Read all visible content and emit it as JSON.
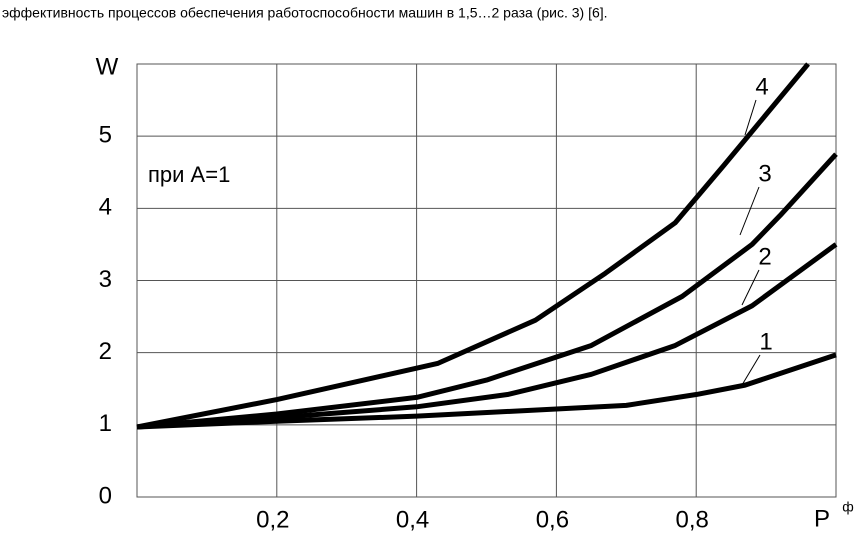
{
  "chart_data": {
    "type": "line",
    "context_text": "эффективность процессов обеспечения работоспособности машин в 1,5…2 раза (рис. 3) [6].",
    "ylabel": "W",
    "xlabel": "P",
    "xlabel_sup": "ф",
    "annotation": "при A=1",
    "xlim": [
      0,
      1
    ],
    "ylim": [
      0,
      6
    ],
    "xticks": [
      {
        "value": 0.2,
        "label": "0,2"
      },
      {
        "value": 0.4,
        "label": "0,4"
      },
      {
        "value": 0.6,
        "label": "0,6"
      },
      {
        "value": 0.8,
        "label": "0,8"
      }
    ],
    "yticks": [
      0,
      1,
      2,
      3,
      4,
      5
    ],
    "grid": true,
    "series": [
      {
        "name": "1",
        "color": "#000000",
        "x": [
          0,
          0.2,
          0.4,
          0.6,
          0.7,
          0.8,
          0.87,
          1.0
        ],
        "values": [
          0.97,
          1.05,
          1.12,
          1.22,
          1.27,
          1.42,
          1.55,
          1.97
        ]
      },
      {
        "name": "2",
        "color": "#000000",
        "x": [
          0,
          0.2,
          0.4,
          0.53,
          0.65,
          0.77,
          0.88,
          1.0
        ],
        "values": [
          0.97,
          1.1,
          1.25,
          1.42,
          1.7,
          2.1,
          2.65,
          3.5
        ]
      },
      {
        "name": "3",
        "color": "#000000",
        "x": [
          0,
          0.2,
          0.4,
          0.5,
          0.65,
          0.78,
          0.88,
          0.92,
          1.0
        ],
        "values": [
          0.97,
          1.15,
          1.38,
          1.62,
          2.1,
          2.78,
          3.5,
          3.9,
          4.75
        ]
      },
      {
        "name": "4",
        "color": "#000000",
        "x": [
          0,
          0.2,
          0.43,
          0.57,
          0.67,
          0.77,
          0.84,
          0.9,
          0.96
        ],
        "values": [
          0.97,
          1.35,
          1.85,
          2.45,
          3.1,
          3.8,
          4.6,
          5.3,
          6.0
        ]
      }
    ]
  }
}
